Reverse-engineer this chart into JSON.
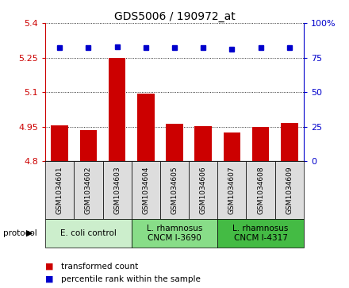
{
  "title": "GDS5006 / 190972_at",
  "samples": [
    "GSM1034601",
    "GSM1034602",
    "GSM1034603",
    "GSM1034604",
    "GSM1034605",
    "GSM1034606",
    "GSM1034607",
    "GSM1034608",
    "GSM1034609"
  ],
  "bar_values": [
    4.957,
    4.934,
    5.247,
    5.092,
    4.963,
    4.951,
    4.926,
    4.948,
    4.967
  ],
  "percentile_values": [
    82,
    82,
    83,
    82,
    82,
    82,
    81,
    82,
    82
  ],
  "ylim_left": [
    4.8,
    5.4
  ],
  "ylim_right": [
    0,
    100
  ],
  "yticks_left": [
    4.8,
    4.95,
    5.1,
    5.25,
    5.4
  ],
  "yticks_right": [
    0,
    25,
    50,
    75,
    100
  ],
  "bar_color": "#cc0000",
  "dot_color": "#0000cc",
  "protocol_groups": [
    {
      "label": "E. coli control",
      "start": 0,
      "end": 3,
      "color": "#cceecc"
    },
    {
      "label": "L. rhamnosus\nCNCM I-3690",
      "start": 3,
      "end": 6,
      "color": "#88dd88"
    },
    {
      "label": "L. rhamnosus\nCNCM I-4317",
      "start": 6,
      "end": 9,
      "color": "#44bb44"
    }
  ],
  "legend_bar_label": "transformed count",
  "legend_dot_label": "percentile rank within the sample",
  "background_color": "#ffffff"
}
